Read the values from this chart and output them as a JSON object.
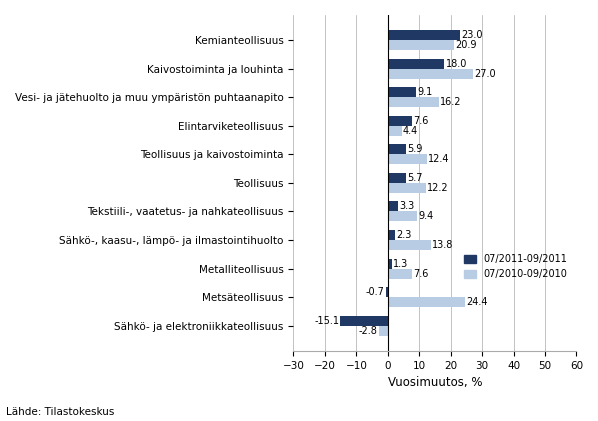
{
  "categories": [
    "Kemianteollisuus",
    "Kaivostoiminta ja louhinta",
    "Vesi- ja jätehuolto ja muu ympäristön puhtaanapito",
    "Elintarviketeollisuus",
    "Teollisuus ja kaivostoiminta",
    "Teollisuus",
    "Tekstiili-, vaatetus- ja nahkateollisuus",
    "Sähkö-, kaasu-, lämpö- ja ilmastointihuolto",
    "Metalliteollisuus",
    "Metsäteollisuus",
    "Sähkö- ja elektroniikkateollisuus"
  ],
  "values_2011": [
    23.0,
    18.0,
    9.1,
    7.6,
    5.9,
    5.7,
    3.3,
    2.3,
    1.3,
    -0.7,
    -15.1
  ],
  "values_2010": [
    20.9,
    27.0,
    16.2,
    4.4,
    12.4,
    12.2,
    9.4,
    13.8,
    7.6,
    24.4,
    -2.8
  ],
  "color_2011": "#1F3864",
  "color_2010": "#B8CCE4",
  "xlim": [
    -30,
    60
  ],
  "xticks": [
    -30,
    -20,
    -10,
    0,
    10,
    20,
    30,
    40,
    50,
    60
  ],
  "xlabel": "Vuosimuutos, %",
  "legend_2011": "07/2011-09/2011",
  "legend_2010": "07/2010-09/2010",
  "source": "Lähde: Tilastokeskus",
  "bar_height": 0.35,
  "label_fontsize": 7.0,
  "tick_fontsize": 7.5,
  "xlabel_fontsize": 8.5
}
